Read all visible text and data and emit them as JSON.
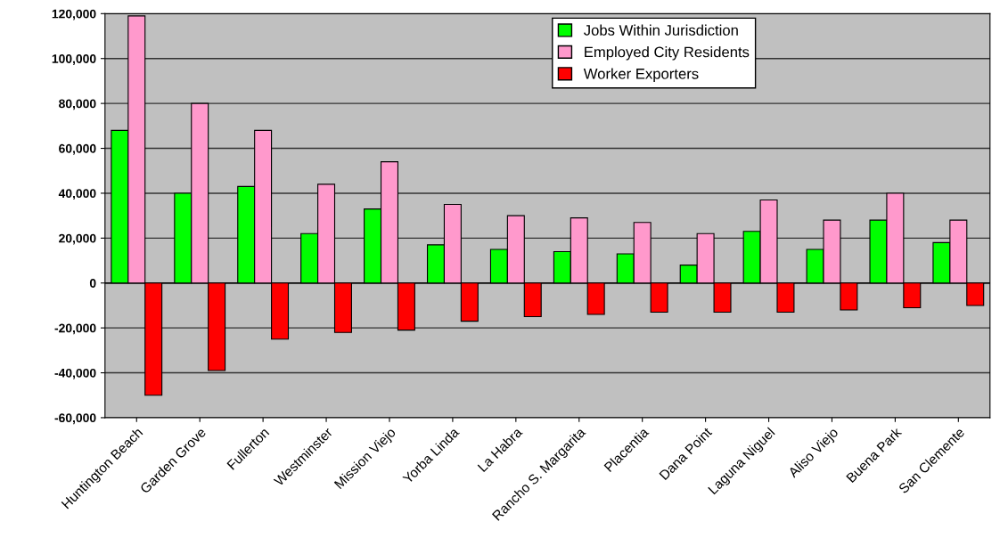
{
  "chart_data": {
    "type": "bar",
    "categories": [
      "Huntington Beach",
      "Garden Grove",
      "Fullerton",
      "Westminster",
      "Mission Viejo",
      "Yorba Linda",
      "La Habra",
      "Rancho S. Margarita",
      "Placentia",
      "Dana Point",
      "Laguna Niguel",
      "Aliso Viejo",
      "Buena Park",
      "San Clemente"
    ],
    "series": [
      {
        "name": "Jobs Within Jurisdiction",
        "color": "#00ff00",
        "values": [
          68000,
          40000,
          43000,
          22000,
          33000,
          17000,
          15000,
          14000,
          13000,
          8000,
          23000,
          15000,
          28000,
          18000
        ]
      },
      {
        "name": "Employed City Residents",
        "color": "#ff99cc",
        "values": [
          119000,
          80000,
          68000,
          44000,
          54000,
          35000,
          30000,
          29000,
          27000,
          22000,
          37000,
          28000,
          40000,
          28000
        ]
      },
      {
        "name": "Worker Exporters",
        "color": "#ff0000",
        "values": [
          -50000,
          -39000,
          -25000,
          -22000,
          -21000,
          -17000,
          -15000,
          -14000,
          -13000,
          -13000,
          -13000,
          -12000,
          -11000,
          -10000
        ]
      }
    ],
    "ylim": [
      -60000,
      120000
    ],
    "yticks": [
      {
        "value": -60000,
        "label": "-60,000"
      },
      {
        "value": -40000,
        "label": "-40,000"
      },
      {
        "value": -20000,
        "label": "-20,000"
      },
      0,
      {
        "value": 20000,
        "label": "20,000"
      },
      {
        "value": 40000,
        "label": "40,000"
      },
      {
        "value": 60000,
        "label": "60,000"
      },
      {
        "value": 80000,
        "label": "80,000"
      },
      {
        "value": 100000,
        "label": "100,000"
      },
      {
        "value": 120000,
        "label": "120,000"
      }
    ],
    "grid": "y",
    "legend": "top right"
  }
}
